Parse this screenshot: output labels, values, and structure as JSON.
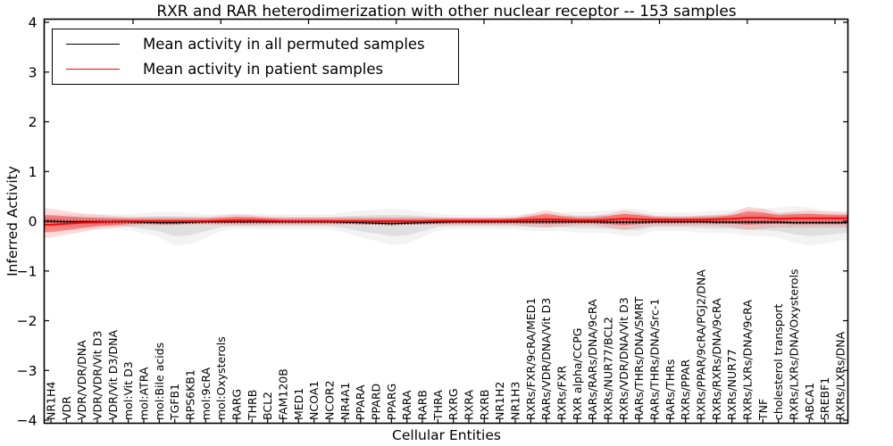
{
  "chart_data": {
    "type": "line",
    "title": "RXR and RAR heterodimerization with other nuclear receptor -- 153 samples",
    "xlabel": "Cellular Entities",
    "ylabel": "Inferred Activity",
    "ylim": [
      -4,
      4
    ],
    "yticks": [
      4,
      3,
      2,
      1,
      0,
      -1,
      -2,
      -3,
      -4
    ],
    "grid": false,
    "legend": {
      "position": "upper left",
      "entries": [
        {
          "label": "Mean activity in all permuted samples",
          "color": "#000000"
        },
        {
          "label": "Mean activity in patient samples",
          "color": "#ff0000"
        }
      ]
    },
    "categories": [
      "NR1H4",
      "VDR",
      "VDR/VDR/DNA",
      "VDR/VDR/Vit D3",
      "VDR/Vit D3/DNA",
      "mol:Vit D3",
      "mol:ATRA",
      "mol:Bile acids",
      "TGFB1",
      "RPS6KB1",
      "mol:9cRA",
      "mol:Oxysterols",
      "RARG",
      "THRB",
      "BCL2",
      "FAM120B",
      "MED1",
      "NCOA1",
      "NCOR2",
      "NR4A1",
      "PPARA",
      "PPARD",
      "PPARG",
      "RARA",
      "RARB",
      "THRA",
      "RXRG",
      "RXRA",
      "RXRB",
      "NR1H2",
      "NR1H3",
      "RXRs/FXR/9cRA/MED1",
      "RARs/VDR/DNA/Vit D3",
      "RXRs/FXR",
      "RXR alpha/CCPG",
      "RARs/RARs/DNA/9cRA",
      "RXRs/NUR77/BCL2",
      "RXRs/VDR/DNA/Vit D3",
      "RARs/THRs/DNA/SMRT",
      "RARs/THRs/DNA/Src-1",
      "RARs/THRs",
      "RXRs/PPAR",
      "RXRs/PPAR/9cRA/PGJ2/DNA",
      "RXRs/RXRs/DNA/9cRA",
      "RXRs/NUR77",
      "RXRs/LXRs/DNA/9cRA",
      "TNF",
      "cholesterol transport",
      "RXRs/LXRs/DNA/Oxysterols",
      "ABCA1",
      "SREBF1",
      "RXRs/LXRs/DNA"
    ],
    "series": [
      {
        "name": "Mean activity in all permuted samples",
        "color": "#000000",
        "band_color": "#c8c8c8",
        "values": [
          0.0,
          -0.01,
          -0.01,
          -0.01,
          -0.01,
          -0.01,
          -0.02,
          -0.03,
          -0.03,
          -0.02,
          -0.01,
          -0.01,
          -0.01,
          -0.01,
          -0.01,
          -0.01,
          -0.01,
          -0.01,
          -0.01,
          -0.02,
          -0.03,
          -0.04,
          -0.05,
          -0.04,
          -0.03,
          -0.02,
          -0.01,
          -0.01,
          -0.01,
          -0.01,
          -0.01,
          -0.01,
          -0.01,
          -0.01,
          -0.01,
          -0.01,
          -0.02,
          -0.02,
          -0.02,
          -0.01,
          -0.01,
          -0.01,
          -0.01,
          -0.02,
          -0.02,
          -0.02,
          -0.02,
          -0.02,
          -0.03,
          -0.03,
          -0.03,
          -0.03
        ],
        "band_upper": [
          0.08,
          0.08,
          0.08,
          0.08,
          0.08,
          0.08,
          0.09,
          0.1,
          0.1,
          0.09,
          0.08,
          0.08,
          0.08,
          0.08,
          0.08,
          0.08,
          0.08,
          0.08,
          0.08,
          0.1,
          0.11,
          0.12,
          0.13,
          0.12,
          0.1,
          0.08,
          0.07,
          0.07,
          0.07,
          0.07,
          0.07,
          0.09,
          0.1,
          0.1,
          0.11,
          0.11,
          0.12,
          0.14,
          0.14,
          0.1,
          0.1,
          0.1,
          0.11,
          0.12,
          0.12,
          0.14,
          0.14,
          0.15,
          0.17,
          0.15,
          0.12,
          0.11
        ],
        "band_lower": [
          -0.1,
          -0.1,
          -0.1,
          -0.1,
          -0.1,
          -0.11,
          -0.15,
          -0.2,
          -0.3,
          -0.28,
          -0.2,
          -0.12,
          -0.1,
          -0.1,
          -0.1,
          -0.1,
          -0.1,
          -0.1,
          -0.1,
          -0.14,
          -0.2,
          -0.25,
          -0.3,
          -0.28,
          -0.2,
          -0.12,
          -0.1,
          -0.1,
          -0.1,
          -0.1,
          -0.1,
          -0.12,
          -0.12,
          -0.12,
          -0.14,
          -0.14,
          -0.15,
          -0.18,
          -0.18,
          -0.12,
          -0.12,
          -0.12,
          -0.14,
          -0.15,
          -0.15,
          -0.18,
          -0.18,
          -0.2,
          -0.26,
          -0.3,
          -0.28,
          -0.24
        ]
      },
      {
        "name": "Mean activity in patient samples",
        "color": "#ff0000",
        "band_color": "#ff0000",
        "values": [
          -0.07,
          -0.05,
          -0.03,
          -0.02,
          -0.01,
          0,
          0,
          0,
          0,
          0,
          0,
          0.01,
          0.02,
          0.02,
          0.01,
          0,
          0,
          0,
          0,
          0,
          0,
          0,
          0,
          0,
          0,
          0.01,
          0.01,
          0.01,
          0.01,
          0.01,
          0.02,
          0.03,
          0.04,
          0.03,
          0.02,
          0.02,
          0.03,
          0.05,
          0.04,
          0.03,
          0.03,
          0.03,
          0.03,
          0.04,
          0.05,
          0.07,
          0.07,
          0.05,
          0.06,
          0.06,
          0.06,
          0.06
        ],
        "band_upper": [
          0.12,
          0.1,
          0.08,
          0.07,
          0.06,
          0.05,
          0.05,
          0.05,
          0.05,
          0.05,
          0.05,
          0.07,
          0.09,
          0.08,
          0.06,
          0.05,
          0.05,
          0.05,
          0.05,
          0.05,
          0.05,
          0.05,
          0.05,
          0.05,
          0.05,
          0.05,
          0.05,
          0.05,
          0.05,
          0.05,
          0.06,
          0.1,
          0.15,
          0.1,
          0.07,
          0.07,
          0.1,
          0.15,
          0.12,
          0.08,
          0.07,
          0.07,
          0.08,
          0.09,
          0.12,
          0.2,
          0.18,
          0.12,
          0.14,
          0.15,
          0.14,
          0.13
        ],
        "band_lower": [
          -0.22,
          -0.18,
          -0.14,
          -0.1,
          -0.08,
          -0.06,
          -0.05,
          -0.05,
          -0.05,
          -0.04,
          -0.04,
          -0.04,
          -0.04,
          -0.04,
          -0.04,
          -0.04,
          -0.04,
          -0.04,
          -0.04,
          -0.04,
          -0.04,
          -0.04,
          -0.04,
          -0.04,
          -0.04,
          -0.04,
          -0.04,
          -0.04,
          -0.04,
          -0.04,
          -0.04,
          -0.05,
          -0.06,
          -0.05,
          -0.04,
          -0.04,
          -0.06,
          -0.08,
          -0.06,
          -0.04,
          -0.04,
          -0.04,
          -0.04,
          -0.04,
          -0.05,
          -0.07,
          -0.06,
          -0.05,
          -0.05,
          -0.05,
          -0.05,
          -0.05
        ]
      }
    ]
  }
}
